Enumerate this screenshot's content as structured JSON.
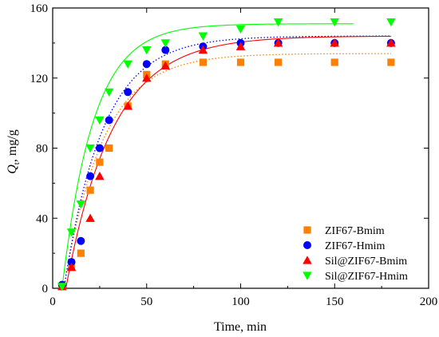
{
  "chart_data": {
    "type": "scatter",
    "xlabel": "Time, min",
    "ylabel_main": "Q",
    "ylabel_sub": "t",
    "ylabel_unit": ", mg/g",
    "xlim": [
      0,
      200
    ],
    "ylim": [
      0,
      160
    ],
    "xticks": [
      0,
      50,
      100,
      150,
      200
    ],
    "yticks": [
      0,
      40,
      80,
      120,
      160
    ],
    "xtick_labels": [
      "0",
      "50",
      "100",
      "150",
      "200"
    ],
    "ytick_labels": [
      "0",
      "40",
      "80",
      "120",
      "160"
    ],
    "legend_position": "bottom-right",
    "grid": false,
    "series": [
      {
        "name": "ZIF67-Bmim",
        "marker": "square",
        "color": "#ff8000",
        "curve_style": "dotted",
        "x": [
          5,
          10,
          15,
          20,
          25,
          30,
          40,
          50,
          60,
          80,
          100,
          120,
          150,
          180
        ],
        "y": [
          1,
          12,
          20,
          56,
          72,
          80,
          104,
          122,
          128,
          129,
          129,
          129,
          129,
          129
        ],
        "fit": {
          "qe": 134,
          "t0": 6,
          "k": 0.048,
          "xmax": 180
        }
      },
      {
        "name": "ZIF67-Hmim",
        "marker": "circle",
        "color": "#0000ff",
        "curve_style": "dotted",
        "x": [
          5,
          10,
          15,
          20,
          25,
          30,
          40,
          50,
          60,
          80,
          100,
          120,
          150,
          180
        ],
        "y": [
          2,
          15,
          27,
          64,
          80,
          96,
          112,
          128,
          136,
          138,
          140,
          140,
          140,
          140
        ],
        "fit": {
          "qe": 144,
          "t0": 6,
          "k": 0.048,
          "xmax": 180
        }
      },
      {
        "name": "Sil@ZIF67-Bmim",
        "marker": "triangle-up",
        "color": "#ff0000",
        "curve_style": "solid",
        "x": [
          5,
          10,
          20,
          25,
          40,
          50,
          60,
          80,
          100,
          120,
          150,
          180
        ],
        "y": [
          1,
          12,
          40,
          64,
          104,
          120,
          127,
          136,
          138,
          140,
          140,
          140
        ],
        "fit": {
          "qe": 144,
          "t0": 7,
          "k": 0.04,
          "xmax": 180
        }
      },
      {
        "name": "Sil@ZIF67-Hmim",
        "marker": "triangle-down",
        "color": "#00ff00",
        "curve_style": "solid",
        "x": [
          5,
          10,
          15,
          20,
          25,
          30,
          40,
          50,
          60,
          80,
          100,
          120,
          150,
          180
        ],
        "y": [
          1,
          32,
          48,
          80,
          96,
          112,
          128,
          136,
          140,
          144,
          148,
          152,
          152,
          152
        ],
        "fit": {
          "qe": 151,
          "t0": 5,
          "k": 0.06,
          "xmax": 160
        }
      }
    ]
  }
}
